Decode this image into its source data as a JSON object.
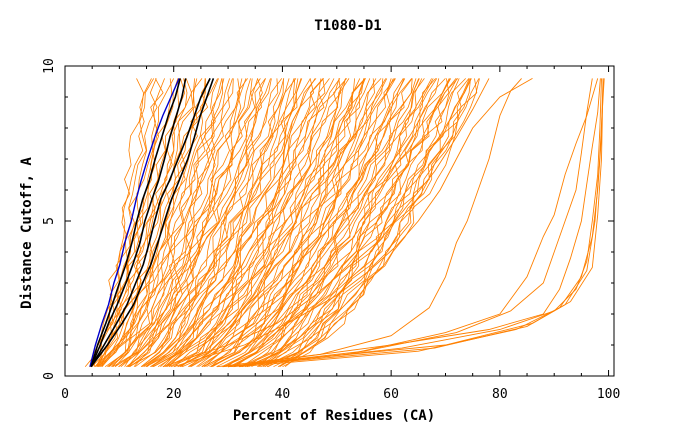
{
  "chart_data": {
    "type": "line",
    "title": "T1080-D1",
    "xlabel": "Percent of Residues (CA)",
    "ylabel": "Distance Cutoff, A",
    "xlim": [
      0,
      101
    ],
    "ylim": [
      0,
      10
    ],
    "x_ticks": [
      0,
      20,
      40,
      60,
      80,
      100
    ],
    "y_ticks": [
      0,
      5,
      10
    ],
    "grid": false,
    "legend": "none",
    "colors": {
      "background_series": "#ff8000",
      "highlight": "#000000",
      "reference": "#0000cc",
      "axes": "#000000"
    },
    "highlight_series": [
      {
        "color": "#000000",
        "points": [
          [
            4.8,
            0.3
          ],
          [
            6,
            1
          ],
          [
            7.5,
            1.7
          ],
          [
            8.7,
            2.3
          ],
          [
            10,
            3
          ],
          [
            11.2,
            3.6
          ],
          [
            12.3,
            4.3
          ],
          [
            13.2,
            5
          ],
          [
            14.3,
            5.7
          ],
          [
            15.5,
            6.3
          ],
          [
            16.6,
            7
          ],
          [
            17.8,
            7.7
          ],
          [
            19,
            8.4
          ],
          [
            20.3,
            9
          ],
          [
            21.2,
            9.6
          ]
        ]
      },
      {
        "color": "#000000",
        "points": [
          [
            4.8,
            0.3
          ],
          [
            6.5,
            1
          ],
          [
            8,
            1.7
          ],
          [
            9.6,
            2.3
          ],
          [
            11.2,
            3
          ],
          [
            12.5,
            3.6
          ],
          [
            13.8,
            4.3
          ],
          [
            14.7,
            5
          ],
          [
            16,
            5.7
          ],
          [
            17.2,
            6.3
          ],
          [
            18.3,
            7
          ],
          [
            19.3,
            7.7
          ],
          [
            20.5,
            8.4
          ],
          [
            21.5,
            9
          ],
          [
            22.2,
            9.6
          ]
        ]
      },
      {
        "color": "#000000",
        "points": [
          [
            4.8,
            0.3
          ],
          [
            7.2,
            1
          ],
          [
            9.5,
            1.7
          ],
          [
            11.4,
            2.3
          ],
          [
            13,
            3
          ],
          [
            14.4,
            3.6
          ],
          [
            15.5,
            4.3
          ],
          [
            16.5,
            5
          ],
          [
            17.6,
            5.7
          ],
          [
            19.2,
            6.3
          ],
          [
            20.8,
            7
          ],
          [
            22.4,
            7.7
          ],
          [
            23.8,
            8.4
          ],
          [
            25,
            9
          ],
          [
            26.7,
            9.6
          ]
        ]
      },
      {
        "color": "#000000",
        "points": [
          [
            4.8,
            0.3
          ],
          [
            7.8,
            1
          ],
          [
            10.5,
            1.7
          ],
          [
            12.6,
            2.3
          ],
          [
            14.3,
            3
          ],
          [
            15.8,
            3.6
          ],
          [
            17.1,
            4.3
          ],
          [
            18.3,
            5
          ],
          [
            19.6,
            5.7
          ],
          [
            21,
            6.3
          ],
          [
            22.6,
            7
          ],
          [
            23.8,
            7.7
          ],
          [
            24.9,
            8.4
          ],
          [
            26.1,
            9
          ],
          [
            27.3,
            9.6
          ]
        ]
      }
    ],
    "reference_series": [
      {
        "color": "#0000cc",
        "points": [
          [
            4.6,
            0.3
          ],
          [
            5.6,
            1
          ],
          [
            6.8,
            1.7
          ],
          [
            8,
            2.3
          ],
          [
            9,
            3
          ],
          [
            10.1,
            3.6
          ],
          [
            11,
            4.3
          ],
          [
            12.2,
            5
          ],
          [
            13.1,
            5.7
          ],
          [
            14,
            6.3
          ],
          [
            15.2,
            7
          ],
          [
            16.5,
            7.7
          ],
          [
            18,
            8.4
          ],
          [
            19.5,
            9
          ],
          [
            21,
            9.6
          ]
        ]
      }
    ],
    "background_families": {
      "band": {
        "count": 120,
        "x_at_0.3": [
          4.5,
          40
        ],
        "x_at_9.6": [
          14,
          77
        ],
        "shape_exponent": 1.5
      },
      "outliers": [
        {
          "points": [
            [
              28,
              0.3
            ],
            [
              47,
              0.7
            ],
            [
              60,
              1.3
            ],
            [
              67,
              2.2
            ],
            [
              70,
              3.2
            ],
            [
              72,
              4.3
            ],
            [
              74,
              5
            ],
            [
              76,
              6
            ],
            [
              78,
              7
            ],
            [
              80,
              8.4
            ],
            [
              82,
              9.2
            ],
            [
              84,
              9.6
            ]
          ]
        },
        {
          "points": [
            [
              30,
              0.3
            ],
            [
              52,
              0.7
            ],
            [
              70,
              1.4
            ],
            [
              80,
              2
            ],
            [
              85,
              3.2
            ],
            [
              88,
              4.5
            ],
            [
              90,
              5.2
            ],
            [
              92,
              6.5
            ],
            [
              94,
              7.5
            ],
            [
              96,
              8.4
            ],
            [
              98,
              9.6
            ]
          ]
        },
        {
          "points": [
            [
              30,
              0.3
            ],
            [
              55,
              0.8
            ],
            [
              72,
              1.4
            ],
            [
              82,
              2.1
            ],
            [
              88,
              3
            ],
            [
              90,
              4
            ],
            [
              92,
              5
            ],
            [
              94,
              6
            ],
            [
              95,
              7.2
            ],
            [
              96,
              8.5
            ],
            [
              97,
              9.6
            ]
          ]
        },
        {
          "points": [
            [
              30,
              0.3
            ],
            [
              60,
              1
            ],
            [
              78,
              1.5
            ],
            [
              88,
              2
            ],
            [
              91,
              2.8
            ],
            [
              93,
              3.8
            ],
            [
              95,
              5
            ],
            [
              96,
              6.2
            ],
            [
              97,
              7.4
            ],
            [
              98,
              8.5
            ],
            [
              98.5,
              9.6
            ]
          ]
        },
        {
          "points": [
            [
              31,
              0.3
            ],
            [
              62,
              0.9
            ],
            [
              80,
              1.5
            ],
            [
              90,
              2.1
            ],
            [
              94,
              2.8
            ],
            [
              96,
              3.7
            ],
            [
              97,
              5
            ],
            [
              98,
              6.5
            ],
            [
              98.4,
              8
            ],
            [
              98.7,
              9.6
            ]
          ]
        },
        {
          "points": [
            [
              32,
              0.3
            ],
            [
              65,
              0.8
            ],
            [
              83,
              1.5
            ],
            [
              91,
              2.2
            ],
            [
              95,
              3.2
            ],
            [
              97,
              4.5
            ],
            [
              98,
              6
            ],
            [
              98.6,
              7.5
            ],
            [
              99,
              9.6
            ]
          ]
        },
        {
          "points": [
            [
              30,
              0.3
            ],
            [
              68,
              0.9
            ],
            [
              85,
              1.6
            ],
            [
              92,
              2.3
            ],
            [
              96,
              3.4
            ],
            [
              97.5,
              5
            ],
            [
              98.3,
              6.8
            ],
            [
              98.8,
              8.4
            ],
            [
              99.2,
              9.6
            ]
          ]
        },
        {
          "points": [
            [
              29,
              0.3
            ],
            [
              70,
              1
            ],
            [
              86,
              1.7
            ],
            [
              93,
              2.4
            ],
            [
              97,
              3.5
            ],
            [
              98,
              5.2
            ],
            [
              98.7,
              7
            ],
            [
              99,
              9.6
            ]
          ]
        },
        {
          "points": [
            [
              20,
              0.3
            ],
            [
              33,
              1
            ],
            [
              42,
              1.8
            ],
            [
              50,
              2.6
            ],
            [
              56,
              3.4
            ],
            [
              61,
              4.2
            ],
            [
              65,
              5
            ],
            [
              69,
              6
            ],
            [
              72,
              7
            ],
            [
              75,
              8
            ],
            [
              80,
              9
            ],
            [
              86,
              9.6
            ]
          ]
        },
        {
          "points": [
            [
              18,
              0.3
            ],
            [
              30,
              1
            ],
            [
              39,
              1.7
            ],
            [
              46,
              2.6
            ],
            [
              52,
              3.5
            ],
            [
              58,
              4.4
            ],
            [
              63,
              5.5
            ],
            [
              68,
              6.6
            ],
            [
              72,
              7.7
            ],
            [
              75,
              8.6
            ],
            [
              78,
              9.6
            ]
          ]
        }
      ]
    }
  }
}
